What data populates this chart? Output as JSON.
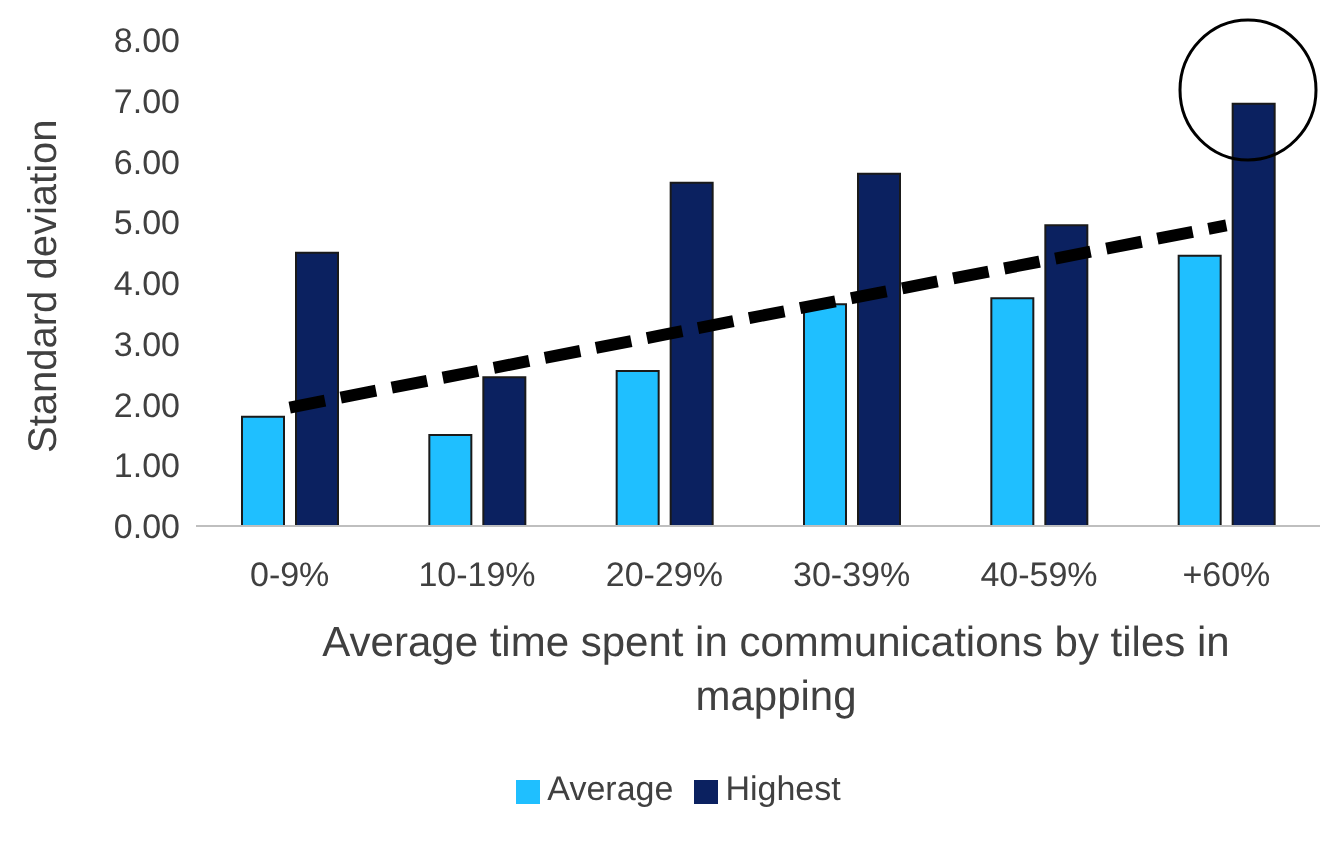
{
  "chart_data": {
    "type": "bar",
    "xlabel": "Average time spent in communications by tiles in mapping",
    "ylabel": "Standard deviation",
    "categories": [
      "0-9%",
      "10-19%",
      "20-29%",
      "30-39%",
      "40-59%",
      "+60%"
    ],
    "series": [
      {
        "name": "Average",
        "color": "#1fbfff",
        "values": [
          1.8,
          1.5,
          2.55,
          3.65,
          3.75,
          4.45
        ]
      },
      {
        "name": "Highest",
        "color": "#0b2160",
        "values": [
          4.5,
          2.45,
          5.65,
          5.8,
          4.95,
          6.95
        ]
      },
      {
        "type": "line",
        "color": "#000000",
        "line_style": "dashed",
        "values": [
          1.95,
          2.55,
          3.15,
          3.75,
          4.35,
          4.95
        ]
      }
    ],
    "ylim": [
      0,
      8
    ],
    "yticks": [
      {
        "value": 0,
        "label": "0.00"
      },
      {
        "value": 1,
        "label": "1.00"
      },
      {
        "value": 2,
        "label": "2.00"
      },
      {
        "value": 3,
        "label": "3.00"
      },
      {
        "value": 4,
        "label": "4.00"
      },
      {
        "value": 5,
        "label": "5.00"
      },
      {
        "value": 6,
        "label": "6.00"
      },
      {
        "value": 7,
        "label": "7.00"
      },
      {
        "value": 8,
        "label": "8.00"
      }
    ],
    "grid": false,
    "legend": "bottom",
    "marker": "none"
  }
}
